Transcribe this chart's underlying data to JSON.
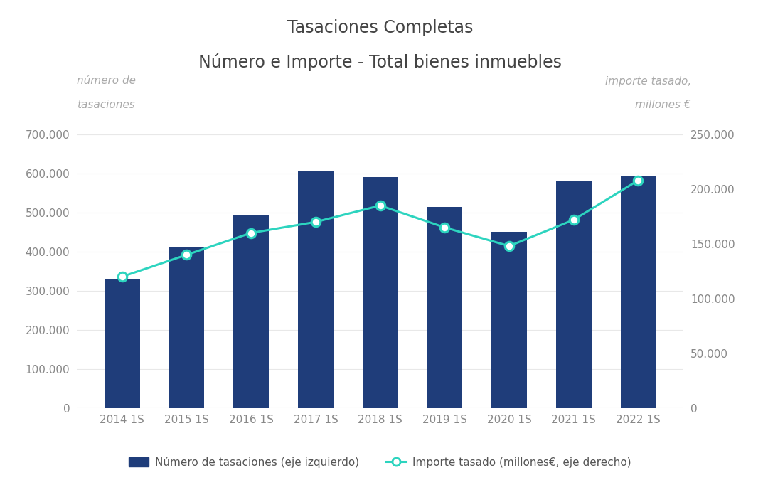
{
  "title_line1": "Tasaciones Completas",
  "title_line2": "Número e Importe - Total bienes inmuebles",
  "categories": [
    "2014 1S",
    "2015 1S",
    "2016 1S",
    "2017 1S",
    "2018 1S",
    "2019 1S",
    "2020 1S",
    "2021 1S",
    "2022 1S"
  ],
  "bar_values": [
    330000,
    410000,
    495000,
    605000,
    590000,
    515000,
    450000,
    580000,
    595000
  ],
  "line_values": [
    120000,
    140000,
    160000,
    170000,
    185000,
    165000,
    148000,
    172000,
    208000
  ],
  "bar_color": "#1F3D7A",
  "line_color": "#2DD4BF",
  "line_marker_facecolor": "#FFFFFF",
  "left_ylabel_line1": "número de",
  "left_ylabel_line2": "tasaciones",
  "right_ylabel_line1": "importe tasado,",
  "right_ylabel_line2": "millones €",
  "left_ylim": [
    0,
    700000
  ],
  "right_ylim": [
    0,
    250000
  ],
  "left_yticks": [
    0,
    100000,
    200000,
    300000,
    400000,
    500000,
    600000,
    700000
  ],
  "right_yticks": [
    0,
    50000,
    100000,
    150000,
    200000,
    250000
  ],
  "legend_bar_label": "Número de tasaciones (eje izquierdo)",
  "legend_line_label": "Importe tasado (millones€, eje derecho)",
  "background_color": "#FFFFFF",
  "title_fontsize": 17,
  "axis_label_fontsize": 11,
  "tick_fontsize": 11,
  "legend_fontsize": 11,
  "tick_color": "#888888",
  "label_color": "#AAAAAA",
  "title_color": "#444444",
  "grid_color": "#E8E8E8"
}
